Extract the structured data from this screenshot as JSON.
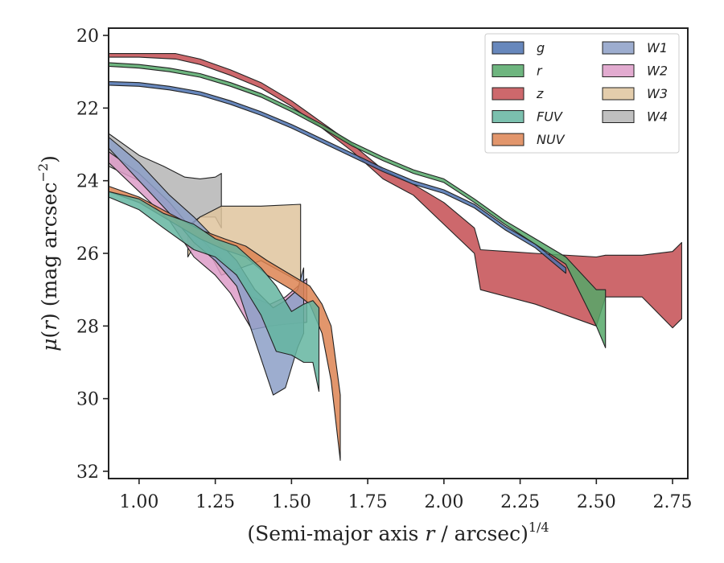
{
  "chart_data": {
    "type": "area",
    "xlabel": "(Semi-major axis r / arcsec)^{1/4}",
    "xlabel_parts": {
      "pre": "(Semi-major axis ",
      "var": "r",
      "post": " / arcsec)",
      "sup": "1/4"
    },
    "ylabel": "μ(r) (mag arcsec^{-2})",
    "ylabel_parts": {
      "mu": "μ",
      "open": "(",
      "var": "r",
      "close": ")",
      "unit": " (mag arcsec",
      "sup": "−2",
      "end": ")"
    },
    "xlim": [
      0.9,
      2.8
    ],
    "ylim": [
      32.2,
      19.8
    ],
    "y_inverted": true,
    "xticks": [
      1.0,
      1.25,
      1.5,
      1.75,
      2.0,
      2.25,
      2.5,
      2.75
    ],
    "xtick_labels": [
      "1.00",
      "1.25",
      "1.50",
      "1.75",
      "2.00",
      "2.25",
      "2.50",
      "2.75"
    ],
    "yticks": [
      20,
      22,
      24,
      26,
      28,
      30,
      32
    ],
    "ytick_labels": [
      "20",
      "22",
      "24",
      "26",
      "28",
      "30",
      "32"
    ],
    "legend_placement": "top-right",
    "legend_columns": 2,
    "grid": false,
    "series": [
      {
        "name": "g",
        "color": "#4c72b0",
        "points": [
          [
            0.9,
            21.27,
            21.37
          ],
          [
            1.0,
            21.3,
            21.4
          ],
          [
            1.1,
            21.4,
            21.5
          ],
          [
            1.2,
            21.55,
            21.65
          ],
          [
            1.3,
            21.8,
            21.9
          ],
          [
            1.4,
            22.1,
            22.2
          ],
          [
            1.5,
            22.45,
            22.55
          ],
          [
            1.6,
            22.85,
            22.95
          ],
          [
            1.7,
            23.25,
            23.35
          ],
          [
            1.8,
            23.65,
            23.75
          ],
          [
            1.9,
            24.0,
            24.1
          ],
          [
            2.0,
            24.25,
            24.35
          ],
          [
            2.1,
            24.65,
            24.75
          ],
          [
            2.2,
            25.25,
            25.35
          ],
          [
            2.3,
            25.75,
            25.85
          ],
          [
            2.4,
            26.4,
            26.55
          ]
        ]
      },
      {
        "name": "r",
        "color": "#55a868",
        "points": [
          [
            0.9,
            20.75,
            20.85
          ],
          [
            1.0,
            20.8,
            20.9
          ],
          [
            1.1,
            20.9,
            21.0
          ],
          [
            1.2,
            21.05,
            21.15
          ],
          [
            1.3,
            21.3,
            21.4
          ],
          [
            1.4,
            21.6,
            21.7
          ],
          [
            1.5,
            22.0,
            22.1
          ],
          [
            1.6,
            22.45,
            22.55
          ],
          [
            1.7,
            22.95,
            23.05
          ],
          [
            1.8,
            23.35,
            23.45
          ],
          [
            1.9,
            23.7,
            23.8
          ],
          [
            2.0,
            23.95,
            24.05
          ],
          [
            2.1,
            24.5,
            24.6
          ],
          [
            2.2,
            25.1,
            25.2
          ],
          [
            2.3,
            25.6,
            25.75
          ],
          [
            2.4,
            26.1,
            26.3
          ],
          [
            2.5,
            27.0,
            28.0
          ],
          [
            2.53,
            27.0,
            28.6
          ]
        ]
      },
      {
        "name": "z",
        "color": "#c44e52",
        "points": [
          [
            0.9,
            20.5,
            20.6
          ],
          [
            1.0,
            20.5,
            20.6
          ],
          [
            1.12,
            20.5,
            20.65
          ],
          [
            1.2,
            20.65,
            20.8
          ],
          [
            1.3,
            20.95,
            21.1
          ],
          [
            1.4,
            21.3,
            21.45
          ],
          [
            1.5,
            21.8,
            21.95
          ],
          [
            1.6,
            22.4,
            22.55
          ],
          [
            1.7,
            23.0,
            23.2
          ],
          [
            1.8,
            23.7,
            23.95
          ],
          [
            1.9,
            24.1,
            24.4
          ],
          [
            2.0,
            24.6,
            25.2
          ],
          [
            2.1,
            25.3,
            26.0
          ],
          [
            2.12,
            25.9,
            27.0
          ],
          [
            2.3,
            26.0,
            27.4
          ],
          [
            2.5,
            26.1,
            28.0
          ],
          [
            2.53,
            26.05,
            27.2
          ],
          [
            2.65,
            26.05,
            27.2
          ],
          [
            2.75,
            25.95,
            28.05
          ],
          [
            2.78,
            25.7,
            27.8
          ]
        ]
      },
      {
        "name": "FUV",
        "color": "#64b5a0",
        "points": [
          [
            0.9,
            24.3,
            24.45
          ],
          [
            1.0,
            24.5,
            24.8
          ],
          [
            1.08,
            24.9,
            25.3
          ],
          [
            1.18,
            25.2,
            25.9
          ],
          [
            1.25,
            25.6,
            26.1
          ],
          [
            1.32,
            25.8,
            26.6
          ],
          [
            1.4,
            26.4,
            27.7
          ],
          [
            1.45,
            26.9,
            28.7
          ],
          [
            1.5,
            27.6,
            28.8
          ],
          [
            1.54,
            27.4,
            29.0
          ],
          [
            1.57,
            27.3,
            29.0
          ],
          [
            1.59,
            27.5,
            29.8
          ]
        ]
      },
      {
        "name": "NUV",
        "color": "#dd8452",
        "points": [
          [
            0.9,
            24.15,
            24.3
          ],
          [
            1.0,
            24.45,
            24.6
          ],
          [
            1.1,
            24.9,
            25.1
          ],
          [
            1.2,
            25.35,
            25.6
          ],
          [
            1.28,
            25.6,
            25.9
          ],
          [
            1.35,
            25.8,
            26.1
          ],
          [
            1.42,
            26.2,
            26.6
          ],
          [
            1.5,
            26.6,
            27.0
          ],
          [
            1.56,
            26.9,
            27.4
          ],
          [
            1.6,
            27.4,
            28.2
          ],
          [
            1.63,
            28.0,
            29.5
          ],
          [
            1.66,
            29.9,
            31.7
          ]
        ]
      },
      {
        "name": "W1",
        "color": "#8c9fc7",
        "points": [
          [
            0.9,
            22.8,
            23.1
          ],
          [
            1.0,
            23.5,
            24.0
          ],
          [
            1.1,
            24.4,
            24.9
          ],
          [
            1.18,
            25.0,
            25.7
          ],
          [
            1.25,
            25.6,
            26.2
          ],
          [
            1.32,
            26.2,
            26.9
          ],
          [
            1.38,
            27.0,
            28.4
          ],
          [
            1.44,
            27.5,
            29.9
          ],
          [
            1.48,
            27.3,
            29.7
          ],
          [
            1.52,
            27.0,
            28.6
          ],
          [
            1.54,
            26.4,
            28.2
          ]
        ]
      },
      {
        "name": "W2",
        "color": "#dd9cc8",
        "points": [
          [
            0.9,
            23.2,
            23.5
          ],
          [
            1.0,
            23.8,
            24.3
          ],
          [
            1.1,
            24.6,
            25.1
          ],
          [
            1.18,
            25.4,
            26.1
          ],
          [
            1.25,
            26.0,
            26.6
          ],
          [
            1.3,
            26.4,
            27.1
          ],
          [
            1.37,
            27.2,
            28.1
          ],
          [
            1.43,
            27.4,
            28.0
          ],
          [
            1.48,
            27.2,
            27.95
          ],
          [
            1.55,
            26.7,
            27.9
          ]
        ]
      },
      {
        "name": "W3",
        "color": "#dfc49d",
        "points": [
          [
            1.16,
            25.3,
            26.1
          ],
          [
            1.2,
            25.0,
            25.5
          ],
          [
            1.27,
            24.7,
            26.6
          ],
          [
            1.4,
            24.7,
            26.2
          ],
          [
            1.53,
            24.65,
            26.8
          ]
        ]
      },
      {
        "name": "W4",
        "color": "#b5b5b5",
        "points": [
          [
            0.9,
            22.7,
            23.6
          ],
          [
            1.0,
            23.3,
            24.0
          ],
          [
            1.08,
            23.6,
            24.6
          ],
          [
            1.15,
            23.9,
            25.3
          ],
          [
            1.2,
            23.95,
            25.0
          ],
          [
            1.25,
            23.9,
            25.0
          ],
          [
            1.27,
            23.8,
            25.3
          ]
        ]
      }
    ]
  }
}
